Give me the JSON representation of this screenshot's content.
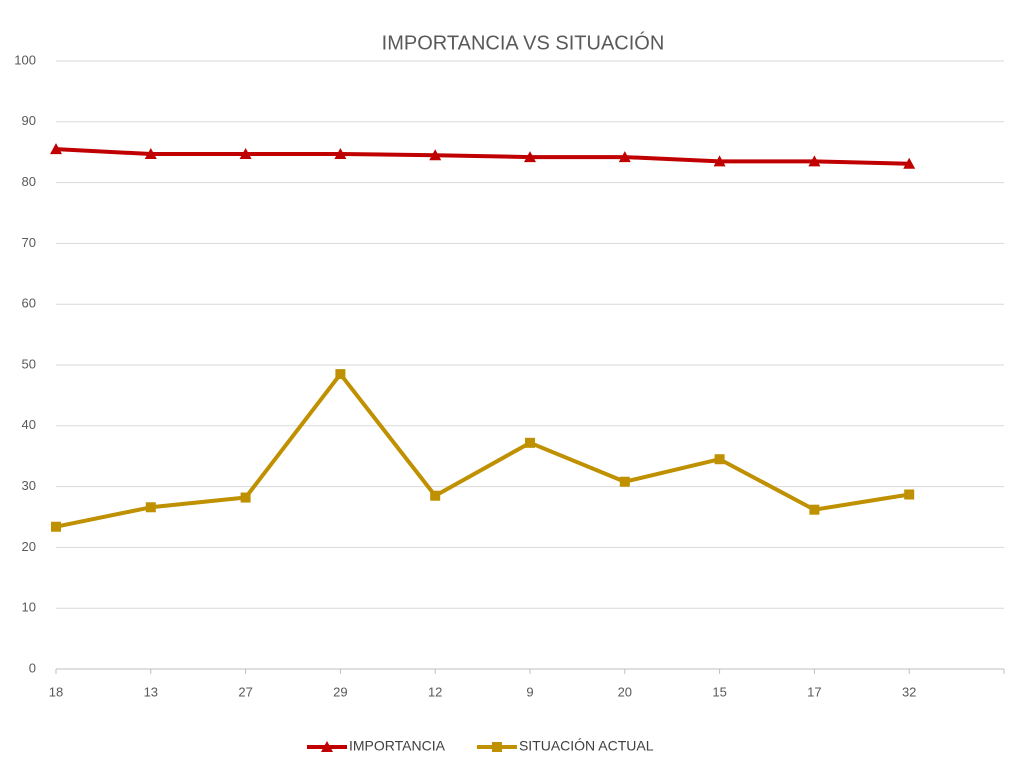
{
  "chart_data": {
    "type": "line",
    "title": "IMPORTANCIA VS SITUACIÓN",
    "categories": [
      "18",
      "13",
      "27",
      "29",
      "12",
      "9",
      "20",
      "15",
      "17",
      "32",
      null
    ],
    "series": [
      {
        "name": "IMPORTANCIA",
        "color": "#c00000",
        "marker": "triangle",
        "values": [
          85.5,
          84.7,
          84.7,
          84.7,
          84.5,
          84.2,
          84.2,
          83.5,
          83.5,
          83.1,
          null
        ]
      },
      {
        "name": "SITUACIÓN ACTUAL",
        "color": "#bf9000",
        "marker": "square",
        "values": [
          23.4,
          26.6,
          28.2,
          48.5,
          28.5,
          37.2,
          30.8,
          34.5,
          26.2,
          28.7,
          null
        ]
      }
    ],
    "ylim": [
      0,
      100
    ],
    "yticks": [
      0,
      10,
      20,
      30,
      40,
      50,
      60,
      70,
      80,
      90,
      100
    ],
    "grid": true,
    "legend": "bottom"
  }
}
